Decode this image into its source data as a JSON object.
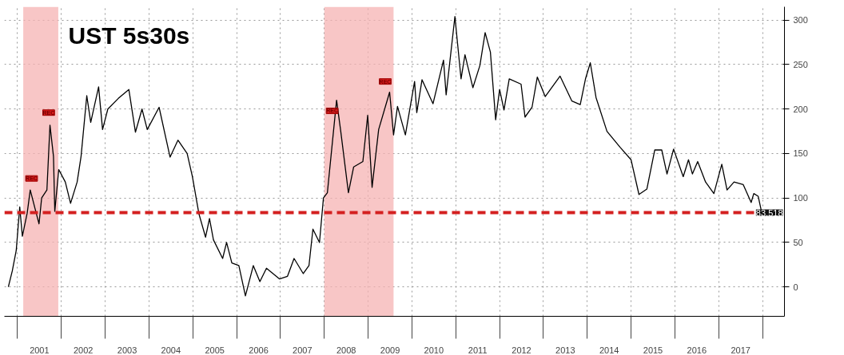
{
  "chart_data": {
    "type": "line",
    "title": "UST 5s30s",
    "x": [
      2000.79,
      2000.88,
      2000.97,
      2001.05,
      2001.11,
      2001.22,
      2001.29,
      2001.4,
      2001.49,
      2001.55,
      2001.67,
      2001.74,
      2001.82,
      2001.85,
      2001.94,
      2002.09,
      2002.21,
      2002.36,
      2002.45,
      2002.58,
      2002.67,
      2002.85,
      2002.94,
      2003.06,
      2003.3,
      2003.54,
      2003.69,
      2003.84,
      2003.96,
      2004.23,
      2004.48,
      2004.66,
      2004.87,
      2004.99,
      2005.14,
      2005.29,
      2005.38,
      2005.47,
      2005.68,
      2005.77,
      2005.89,
      2006.05,
      2006.2,
      2006.38,
      2006.53,
      2006.68,
      2006.98,
      2007.16,
      2007.31,
      2007.52,
      2007.65,
      2007.74,
      2007.89,
      2007.98,
      2008.07,
      2008.28,
      2008.37,
      2008.55,
      2008.67,
      2008.88,
      2008.99,
      2009.09,
      2009.24,
      2009.49,
      2009.58,
      2009.67,
      2009.85,
      2010.06,
      2010.11,
      2010.23,
      2010.48,
      2010.72,
      2010.78,
      2010.98,
      2011.12,
      2011.21,
      2011.39,
      2011.55,
      2011.67,
      2011.79,
      2011.91,
      2012.0,
      2012.1,
      2012.22,
      2012.49,
      2012.58,
      2012.74,
      2012.86,
      2013.04,
      2013.38,
      2013.65,
      2013.84,
      2013.96,
      2014.07,
      2014.2,
      2014.45,
      2014.75,
      2015.0,
      2015.18,
      2015.36,
      2015.54,
      2015.7,
      2015.82,
      2015.97,
      2016.19,
      2016.31,
      2016.4,
      2016.52,
      2016.7,
      2016.89,
      2017.07,
      2017.19,
      2017.35,
      2017.56,
      2017.74,
      2017.8,
      2017.9,
      2017.98
    ],
    "series": [
      {
        "color": "#000000",
        "values": [
          0,
          18,
          41,
          90,
          57,
          83,
          109,
          88,
          71,
          100,
          109,
          182,
          147,
          85,
          132,
          118,
          94,
          118,
          147,
          215,
          185,
          225,
          177,
          200,
          212,
          222,
          174,
          200,
          177,
          202,
          146,
          165,
          150,
          124,
          82,
          56,
          77,
          53,
          32,
          50,
          27,
          24,
          -10,
          24,
          6,
          21,
          9,
          12,
          32,
          15,
          24,
          65,
          50,
          100,
          106,
          210,
          177,
          106,
          135,
          141,
          193,
          112,
          177,
          219,
          171,
          203,
          171,
          231,
          196,
          233,
          206,
          255,
          216,
          304,
          234,
          261,
          224,
          249,
          286,
          264,
          188,
          222,
          199,
          234,
          228,
          191,
          202,
          236,
          214,
          237,
          209,
          205,
          234,
          252,
          213,
          175,
          157,
          143,
          104,
          110,
          154,
          154,
          127,
          155,
          124,
          143,
          127,
          141,
          118,
          105,
          138,
          109,
          118,
          115,
          95,
          105,
          102,
          84
        ]
      }
    ],
    "xlim": [
      2000.7,
      2018.5
    ],
    "ylim": [
      -33,
      315
    ],
    "xticks": [
      {
        "value": 2001,
        "label": null
      },
      {
        "value": 2001.5,
        "label": "2001"
      },
      {
        "value": 2002,
        "label": null
      },
      {
        "value": 2002.5,
        "label": "2002"
      },
      {
        "value": 2003,
        "label": null
      },
      {
        "value": 2003.5,
        "label": "2003"
      },
      {
        "value": 2004,
        "label": null
      },
      {
        "value": 2004.5,
        "label": "2004"
      },
      {
        "value": 2005,
        "label": null
      },
      {
        "value": 2005.5,
        "label": "2005"
      },
      {
        "value": 2006,
        "label": null
      },
      {
        "value": 2006.5,
        "label": "2006"
      },
      {
        "value": 2007,
        "label": null
      },
      {
        "value": 2007.5,
        "label": "2007"
      },
      {
        "value": 2008,
        "label": null
      },
      {
        "value": 2008.5,
        "label": "2008"
      },
      {
        "value": 2009,
        "label": null
      },
      {
        "value": 2009.5,
        "label": "2009"
      },
      {
        "value": 2010,
        "label": null
      },
      {
        "value": 2010.5,
        "label": "2010"
      },
      {
        "value": 2011,
        "label": null
      },
      {
        "value": 2011.5,
        "label": "2011"
      },
      {
        "value": 2012,
        "label": null
      },
      {
        "value": 2012.5,
        "label": "2012"
      },
      {
        "value": 2013,
        "label": null
      },
      {
        "value": 2013.5,
        "label": "2013"
      },
      {
        "value": 2014,
        "label": null
      },
      {
        "value": 2014.5,
        "label": "2014"
      },
      {
        "value": 2015,
        "label": null
      },
      {
        "value": 2015.5,
        "label": "2015"
      },
      {
        "value": 2016,
        "label": null
      },
      {
        "value": 2016.5,
        "label": "2016"
      },
      {
        "value": 2017,
        "label": null
      },
      {
        "value": 2017.5,
        "label": "2017"
      },
      {
        "value": 2018,
        "label": null
      }
    ],
    "yticks": [
      0,
      50,
      100,
      150,
      200,
      250,
      300
    ],
    "grid": true,
    "ref_lines": [
      {
        "axis": "y",
        "value": 83.518,
        "label": "83.518",
        "color": "#d42020",
        "line_style": "dashed"
      }
    ],
    "bands": [
      {
        "axis": "x",
        "from": 2001.13,
        "to": 2001.93,
        "color": "#f6b3b3"
      },
      {
        "axis": "x",
        "from": 2008.0,
        "to": 2009.58,
        "color": "#f6b3b3"
      }
    ],
    "annotations": [
      {
        "text": "REC",
        "x": 2001.32,
        "y": 122
      },
      {
        "text": "REC",
        "x": 2001.71,
        "y": 196
      },
      {
        "text": "REC",
        "x": 2008.18,
        "y": 198
      },
      {
        "text": "REC",
        "x": 2009.39,
        "y": 231
      }
    ]
  }
}
